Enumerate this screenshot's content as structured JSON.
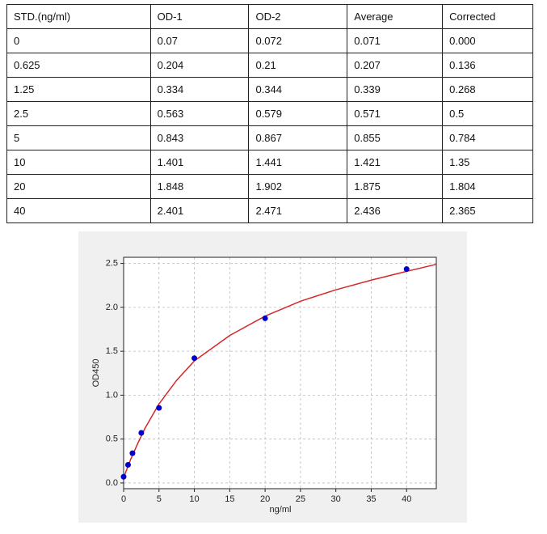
{
  "table": {
    "header": [
      "STD.(ng/ml)",
      "OD-1",
      "OD-2",
      "Average",
      "Corrected"
    ],
    "rows": [
      [
        "0",
        "0.07",
        "0.072",
        "0.071",
        "0.000"
      ],
      [
        "0.625",
        "0.204",
        "0.21",
        "0.207",
        "0.136"
      ],
      [
        "1.25",
        "0.334",
        "0.344",
        "0.339",
        "0.268"
      ],
      [
        "2.5",
        "0.563",
        "0.579",
        "0.571",
        "0.5"
      ],
      [
        "5",
        "0.843",
        "0.867",
        "0.855",
        "0.784"
      ],
      [
        "10",
        "1.401",
        "1.441",
        "1.421",
        "1.35"
      ],
      [
        "20",
        "1.848",
        "1.902",
        "1.875",
        "1.804"
      ],
      [
        "40",
        "2.401",
        "2.471",
        "2.436",
        "2.365"
      ]
    ]
  },
  "chart_data": {
    "type": "scatter",
    "xlabel": "ng/ml",
    "ylabel": "OD450",
    "xlim": [
      0,
      44.2
    ],
    "ylim": [
      -0.065,
      2.57
    ],
    "xticks": [
      0,
      5,
      10,
      15,
      20,
      25,
      30,
      35,
      40
    ],
    "yticks": [
      {
        "value": 0,
        "label": "0.0"
      },
      0.5,
      {
        "value": 1,
        "label": "1.0"
      },
      1.5,
      {
        "value": 2,
        "label": "2.0"
      },
      2.5
    ],
    "grid": true,
    "points": {
      "color": "#0000cc",
      "x": [
        0,
        0.625,
        1.25,
        2.5,
        5,
        10,
        20,
        40
      ],
      "values": [
        0.071,
        0.207,
        0.339,
        0.571,
        0.855,
        1.421,
        1.875,
        2.436
      ]
    },
    "curve": {
      "color": "#d62728",
      "x": [
        0,
        1,
        2,
        3,
        5,
        7.5,
        10,
        15,
        20,
        25,
        30,
        35,
        40,
        44.2
      ],
      "values": [
        0.06,
        0.27,
        0.45,
        0.62,
        0.9,
        1.17,
        1.39,
        1.68,
        1.9,
        2.07,
        2.2,
        2.31,
        2.41,
        2.49
      ]
    }
  }
}
